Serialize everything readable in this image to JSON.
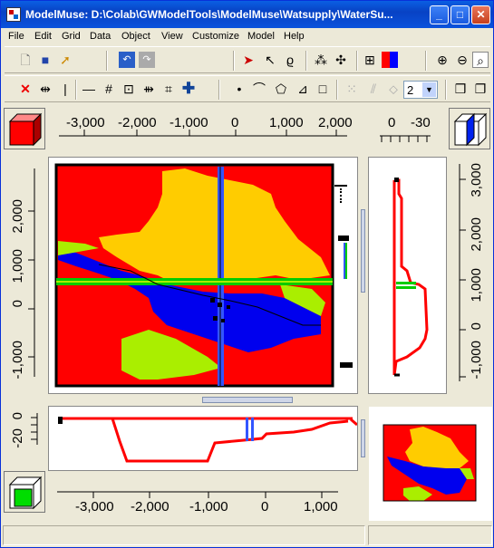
{
  "window": {
    "title": "ModelMuse: D:\\Colab\\GWModelTools\\ModelMuse\\Watsupply\\WaterSu...",
    "minimize_glyph": "_",
    "maximize_glyph": "□",
    "close_glyph": "✕"
  },
  "menu": [
    "File",
    "Edit",
    "Grid",
    "Data",
    "Object",
    "View",
    "Customize",
    "Model",
    "Help"
  ],
  "toolbar": {
    "layer_select_value": "2"
  },
  "top_view_ruler": {
    "x_ticks": [
      "-3,000",
      "-2,000",
      "-1,000",
      "0",
      "1,000",
      "2,000"
    ],
    "y_ticks": [
      "2,000",
      "1,000",
      "0",
      "-1,000"
    ]
  },
  "side_view_ruler": {
    "x_ticks": [
      "0",
      "-30"
    ],
    "y_ticks": [
      "3,000",
      "2,000",
      "1,000",
      "0",
      "-1,000"
    ]
  },
  "front_view_ruler": {
    "x_ticks": [
      "-3,000",
      "-2,000",
      "-1,000",
      "0",
      "1,000"
    ],
    "y_ticks": [
      "0",
      "-20"
    ]
  },
  "colors": {
    "zone_red": "#ff0000",
    "zone_yellow": "#ffcc00",
    "zone_blue": "#0000ee",
    "zone_lime": "#aaee00",
    "grid_green": "#00cc00",
    "column_blue": "#3355ff",
    "titlebar_blue": "#0a52dc",
    "face": "#ece9d8"
  }
}
